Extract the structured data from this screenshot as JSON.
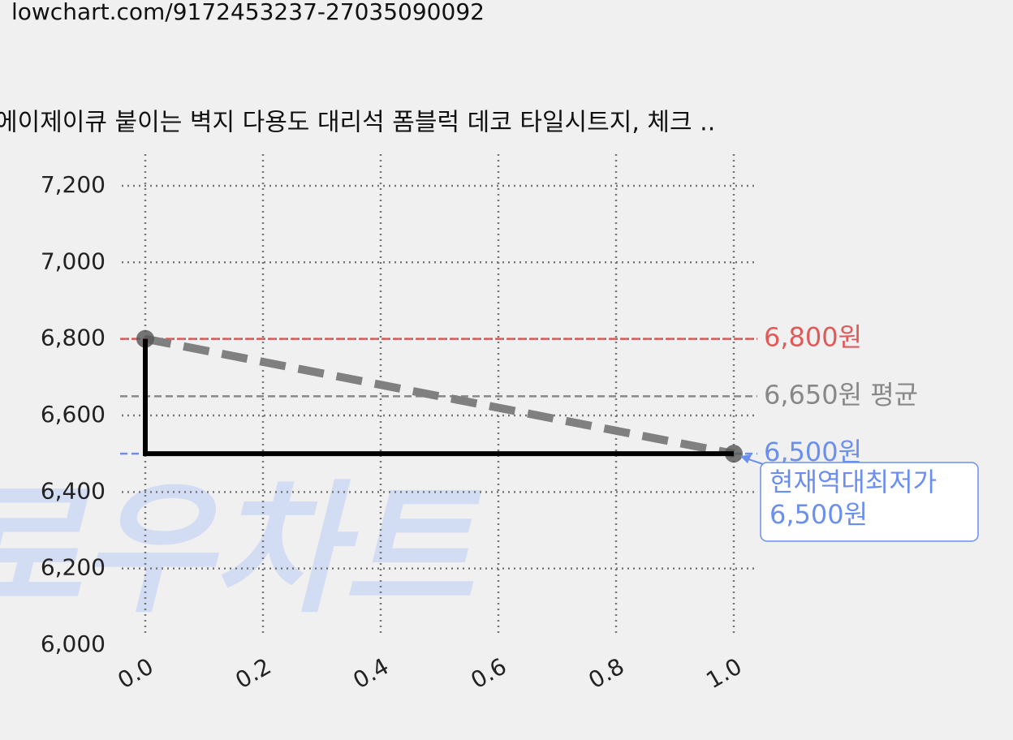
{
  "url": "lowchart.com/9172453237-27035090092",
  "chart_data": {
    "type": "line",
    "title": "에이제이큐 붙이는 벽지 다용도 대리석 폼블럭 데코 타일시트지, 체크 ..",
    "watermark": "로우차트",
    "series": [
      {
        "x": [
          0,
          1
        ],
        "values": [
          6800,
          6500
        ],
        "color": "#808080",
        "style": "dashed",
        "markers": true
      },
      {
        "x": [
          0,
          0,
          1
        ],
        "values": [
          6800,
          6500,
          6500
        ],
        "color": "#000000",
        "style": "solid",
        "markers": false
      }
    ],
    "hlines": [
      {
        "value": 6800,
        "label": "6,800원",
        "color": "#e05a5a"
      },
      {
        "value": 6650,
        "label": "6,650원 평균",
        "color": "#888888"
      },
      {
        "value": 6500,
        "label": "6,500원",
        "color": "#6b8ff0"
      }
    ],
    "annotation": {
      "lines": [
        "현재역대최저가",
        "6,500원"
      ],
      "x": 1,
      "y": 6500,
      "color": "#6b8ff0"
    },
    "xlim": [
      -0.04,
      1.04
    ],
    "ylim": [
      6000,
      7280
    ],
    "xticks": [
      {
        "value": 0,
        "label": "0.0"
      },
      0.2,
      0.4,
      0.6,
      0.8,
      {
        "value": 1,
        "label": "1.0"
      }
    ],
    "yticks": [
      {
        "value": 6000,
        "label": "6,000"
      },
      {
        "value": 6200,
        "label": "6,200"
      },
      {
        "value": 6400,
        "label": "6,400"
      },
      {
        "value": 6600,
        "label": "6,600"
      },
      {
        "value": 6800,
        "label": "6,800"
      },
      {
        "value": 7000,
        "label": "7,000"
      },
      {
        "value": 7200,
        "label": "7,200"
      }
    ],
    "grid": true
  }
}
